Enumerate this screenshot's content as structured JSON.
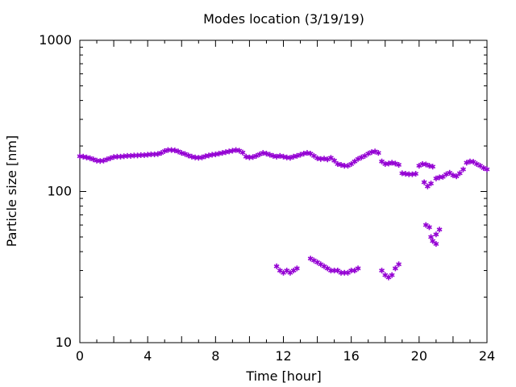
{
  "chart_data": {
    "type": "scatter",
    "title": "Modes location (3/19/19)",
    "xlabel": "Time [hour]",
    "ylabel": "Particle size [nm]",
    "xlim": [
      0,
      24
    ],
    "ylim": [
      10,
      1000
    ],
    "yscale": "log",
    "grid": false,
    "legend": "none",
    "xticks": [
      "0",
      "4",
      "8",
      "12",
      "16",
      "20",
      "24"
    ],
    "yticks": [
      "10",
      "100",
      "1000"
    ],
    "marker_color": "#9400d3",
    "series": [
      {
        "name": "",
        "points": [
          [
            0.0,
            171
          ],
          [
            0.2,
            170
          ],
          [
            0.4,
            168
          ],
          [
            0.6,
            166
          ],
          [
            0.8,
            163
          ],
          [
            1.0,
            160
          ],
          [
            1.2,
            159
          ],
          [
            1.4,
            160
          ],
          [
            1.6,
            163
          ],
          [
            1.8,
            166
          ],
          [
            2.0,
            169
          ],
          [
            2.2,
            170
          ],
          [
            2.4,
            170
          ],
          [
            2.6,
            171
          ],
          [
            2.8,
            172
          ],
          [
            3.0,
            172
          ],
          [
            3.2,
            173
          ],
          [
            3.4,
            173
          ],
          [
            3.6,
            174
          ],
          [
            3.8,
            174
          ],
          [
            4.0,
            175
          ],
          [
            4.2,
            176
          ],
          [
            4.4,
            176
          ],
          [
            4.6,
            177
          ],
          [
            4.8,
            180
          ],
          [
            5.0,
            185
          ],
          [
            5.2,
            188
          ],
          [
            5.4,
            188
          ],
          [
            5.6,
            187
          ],
          [
            5.8,
            184
          ],
          [
            6.0,
            180
          ],
          [
            6.2,
            177
          ],
          [
            6.4,
            173
          ],
          [
            6.6,
            170
          ],
          [
            6.8,
            168
          ],
          [
            7.0,
            167
          ],
          [
            7.2,
            168
          ],
          [
            7.4,
            171
          ],
          [
            7.6,
            173
          ],
          [
            7.8,
            175
          ],
          [
            8.0,
            176
          ],
          [
            8.2,
            178
          ],
          [
            8.4,
            180
          ],
          [
            8.6,
            182
          ],
          [
            8.8,
            184
          ],
          [
            9.0,
            186
          ],
          [
            9.2,
            188
          ],
          [
            9.4,
            186
          ],
          [
            9.6,
            181
          ],
          [
            9.8,
            170
          ],
          [
            10.0,
            168
          ],
          [
            10.2,
            169
          ],
          [
            10.4,
            172
          ],
          [
            10.6,
            176
          ],
          [
            10.8,
            180
          ],
          [
            11.0,
            178
          ],
          [
            11.2,
            175
          ],
          [
            11.4,
            172
          ],
          [
            11.6,
            170
          ],
          [
            11.8,
            172
          ],
          [
            12.0,
            170
          ],
          [
            12.2,
            168
          ],
          [
            12.4,
            167
          ],
          [
            12.6,
            170
          ],
          [
            12.8,
            172
          ],
          [
            13.0,
            175
          ],
          [
            13.2,
            178
          ],
          [
            13.4,
            180
          ],
          [
            13.6,
            178
          ],
          [
            13.8,
            172
          ],
          [
            14.0,
            166
          ],
          [
            14.2,
            164
          ],
          [
            14.4,
            165
          ],
          [
            14.6,
            163
          ],
          [
            14.8,
            167
          ],
          [
            15.0,
            160
          ],
          [
            15.2,
            152
          ],
          [
            15.4,
            150
          ],
          [
            15.6,
            148
          ],
          [
            15.8,
            148
          ],
          [
            16.0,
            152
          ],
          [
            16.2,
            158
          ],
          [
            16.4,
            164
          ],
          [
            16.6,
            168
          ],
          [
            16.8,
            172
          ],
          [
            17.0,
            178
          ],
          [
            17.2,
            182
          ],
          [
            17.4,
            184
          ],
          [
            17.6,
            180
          ],
          [
            17.8,
            158
          ],
          [
            18.0,
            152
          ],
          [
            18.2,
            153
          ],
          [
            18.4,
            155
          ],
          [
            18.6,
            153
          ],
          [
            18.8,
            150
          ],
          [
            19.0,
            132
          ],
          [
            19.2,
            131
          ],
          [
            19.4,
            130
          ],
          [
            19.6,
            130
          ],
          [
            19.8,
            131
          ],
          [
            20.0,
            148
          ],
          [
            20.2,
            152
          ],
          [
            20.4,
            151
          ],
          [
            20.6,
            148
          ],
          [
            20.8,
            146
          ],
          [
            20.3,
            115
          ],
          [
            20.5,
            108
          ],
          [
            20.7,
            113
          ],
          [
            21.0,
            122
          ],
          [
            21.2,
            124
          ],
          [
            21.4,
            125
          ],
          [
            21.6,
            130
          ],
          [
            21.8,
            133
          ],
          [
            22.0,
            128
          ],
          [
            22.2,
            126
          ],
          [
            22.4,
            132
          ],
          [
            22.6,
            140
          ],
          [
            22.8,
            155
          ],
          [
            23.0,
            158
          ],
          [
            23.2,
            157
          ],
          [
            23.4,
            152
          ],
          [
            23.6,
            148
          ],
          [
            23.8,
            143
          ],
          [
            24.0,
            140
          ],
          [
            11.6,
            32
          ],
          [
            11.8,
            30
          ],
          [
            12.0,
            29
          ],
          [
            12.2,
            30
          ],
          [
            12.4,
            29
          ],
          [
            12.6,
            30
          ],
          [
            12.8,
            31
          ],
          [
            13.6,
            36
          ],
          [
            13.8,
            35
          ],
          [
            14.0,
            34
          ],
          [
            14.2,
            33
          ],
          [
            14.4,
            32
          ],
          [
            14.6,
            31
          ],
          [
            14.8,
            30
          ],
          [
            15.0,
            30
          ],
          [
            15.2,
            30
          ],
          [
            15.4,
            29
          ],
          [
            15.6,
            29
          ],
          [
            15.8,
            29
          ],
          [
            16.0,
            30
          ],
          [
            16.2,
            30
          ],
          [
            16.4,
            31
          ],
          [
            17.8,
            30
          ],
          [
            18.0,
            28
          ],
          [
            18.2,
            27
          ],
          [
            18.4,
            28
          ],
          [
            18.6,
            31
          ],
          [
            18.8,
            33
          ],
          [
            20.4,
            60
          ],
          [
            20.6,
            58
          ],
          [
            20.7,
            50
          ],
          [
            20.8,
            47
          ],
          [
            21.0,
            45
          ],
          [
            21.0,
            52
          ],
          [
            21.2,
            56
          ]
        ]
      }
    ]
  }
}
